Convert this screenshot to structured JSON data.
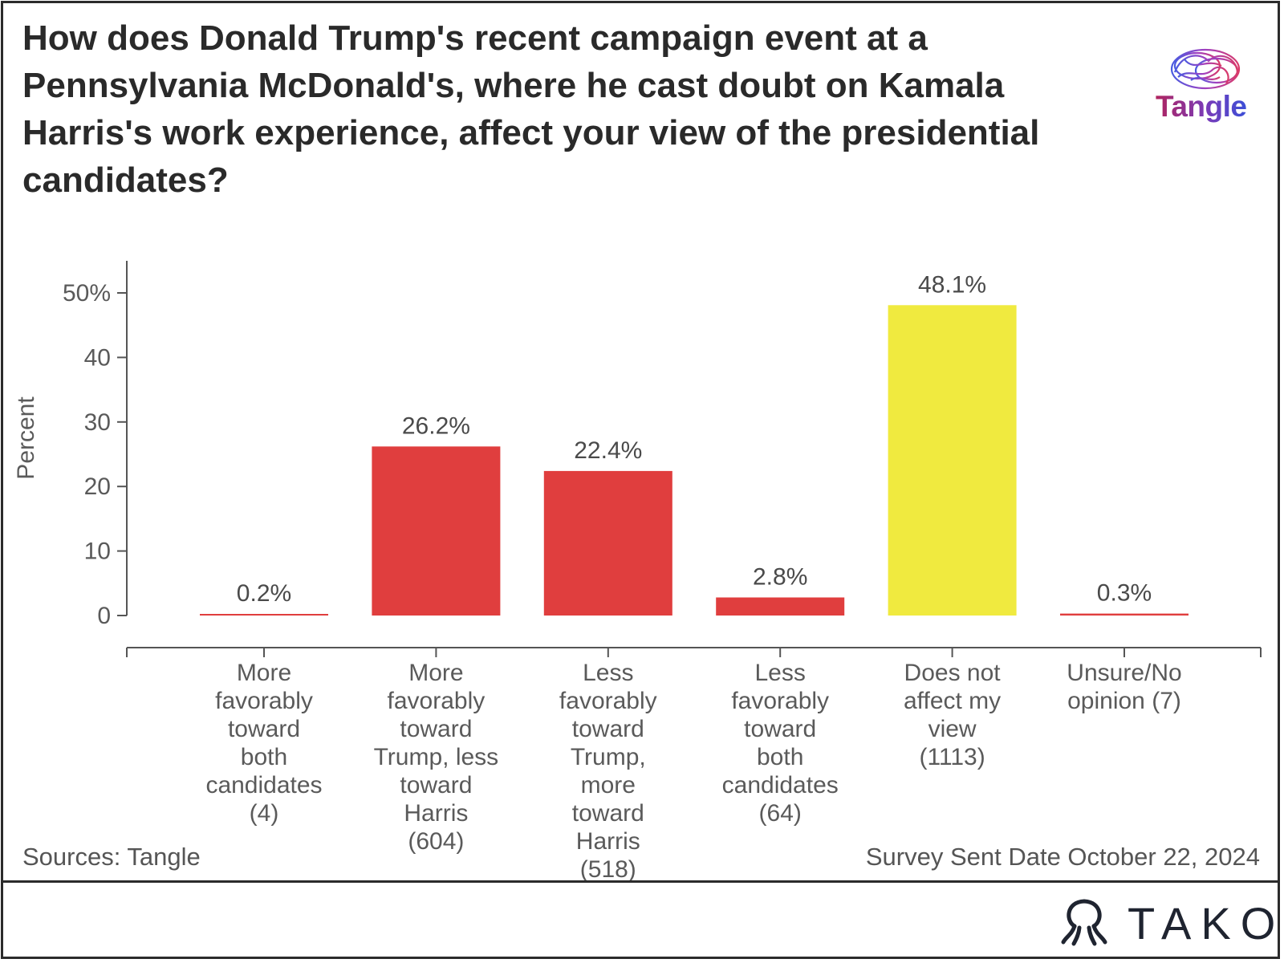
{
  "title": "How does Donald Trump's recent campaign event at a Pennsylvania McDonald's, where he cast doubt on Kamala Harris's work experience, affect your view of the presidential candidates?",
  "logo": {
    "name": "tangle-brain-logo",
    "text": "Tangle"
  },
  "sources": "Sources: Tangle",
  "survey_date": "Survey Sent Date October 22, 2024",
  "brand": {
    "name": "tako-logo-icon",
    "text": "TAKO"
  },
  "colors": {
    "red_bar": "#e03e3e",
    "yellow_bar": "#f0ea3f",
    "axis": "#555555"
  },
  "chart_data": {
    "type": "bar",
    "categories": [
      "More favorably toward both candidates (4)",
      "More favorably toward Trump, less toward Harris (604)",
      "Less favorably toward Trump, more toward Harris (518)",
      "Less favorably toward both candidates (64)",
      "Does not affect my view (1113)",
      "Unsure/No opinion (7)"
    ],
    "category_lines": [
      [
        "More",
        "favorably",
        "toward",
        "both",
        "candidates",
        "(4)"
      ],
      [
        "More",
        "favorably",
        "toward",
        "Trump, less",
        "toward",
        "Harris",
        "(604)"
      ],
      [
        "Less",
        "favorably",
        "toward",
        "Trump,",
        "more",
        "toward",
        "Harris",
        "(518)"
      ],
      [
        "Less",
        "favorably",
        "toward",
        "both",
        "candidates",
        "(64)"
      ],
      [
        "Does not",
        "affect my",
        "view",
        "(1113)"
      ],
      [
        "Unsure/No",
        "opinion (7)"
      ]
    ],
    "values": [
      0.2,
      26.2,
      22.4,
      2.8,
      48.1,
      0.3
    ],
    "value_labels": [
      "0.2%",
      "26.2%",
      "22.4%",
      "2.8%",
      "48.1%",
      "0.3%"
    ],
    "bar_colors": [
      "#e03e3e",
      "#e03e3e",
      "#e03e3e",
      "#e03e3e",
      "#f0ea3f",
      "#e03e3e"
    ],
    "ylabel": "Percent",
    "xlabel": "",
    "ylim": [
      0,
      55
    ],
    "yticks": [
      0,
      10,
      20,
      30,
      40,
      50
    ],
    "ytick_labels": [
      "0",
      "10",
      "20",
      "30",
      "40",
      "50%"
    ],
    "grid": false,
    "legend": "none"
  }
}
